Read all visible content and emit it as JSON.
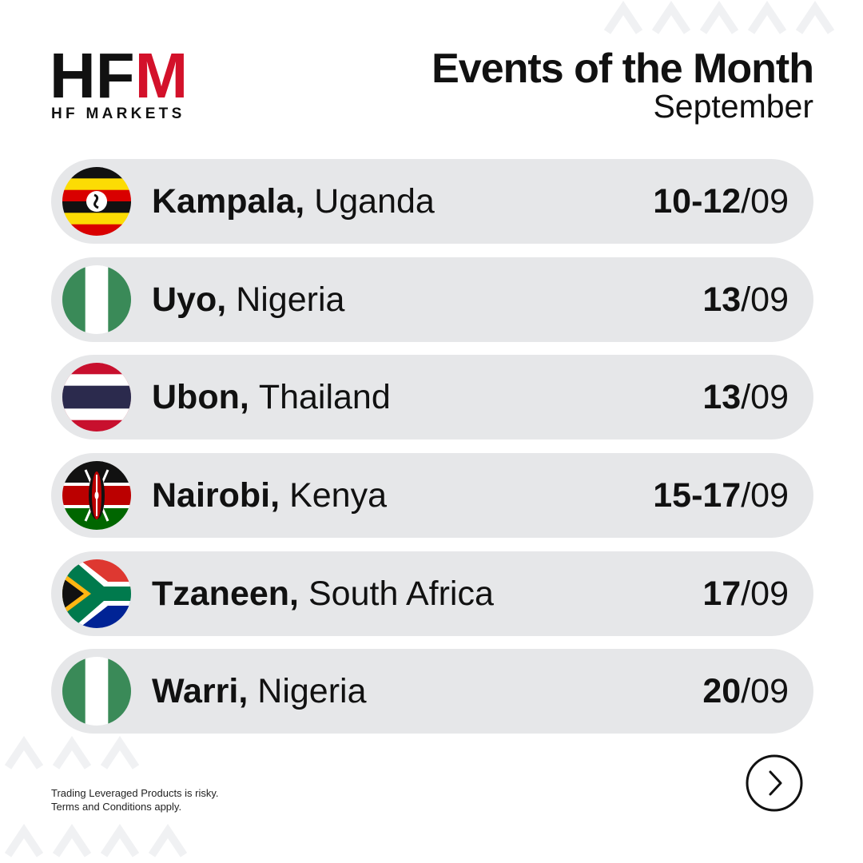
{
  "header": {
    "logo": "HFM",
    "logo_subtitle": "HF MARKETS",
    "title": "Events of the Month",
    "subtitle": "September"
  },
  "events": [
    {
      "city": "Kampala,",
      "country": "Uganda",
      "day": "10-12",
      "month": "/09"
    },
    {
      "city": "Uyo,",
      "country": "Nigeria",
      "day": "13",
      "month": "/09"
    },
    {
      "city": "Ubon,",
      "country": "Thailand",
      "day": "13",
      "month": "/09"
    },
    {
      "city": "Nairobi,",
      "country": "Kenya",
      "day": "15-17",
      "month": "/09"
    },
    {
      "city": "Tzaneen,",
      "country": "South Africa",
      "day": "17",
      "month": "/09"
    },
    {
      "city": "Warri,",
      "country": "Nigeria",
      "day": "20",
      "month": "/09"
    }
  ],
  "footer": {
    "disclaimer": [
      "Trading Leveraged Products is risky.",
      "Terms and Conditions apply."
    ]
  }
}
